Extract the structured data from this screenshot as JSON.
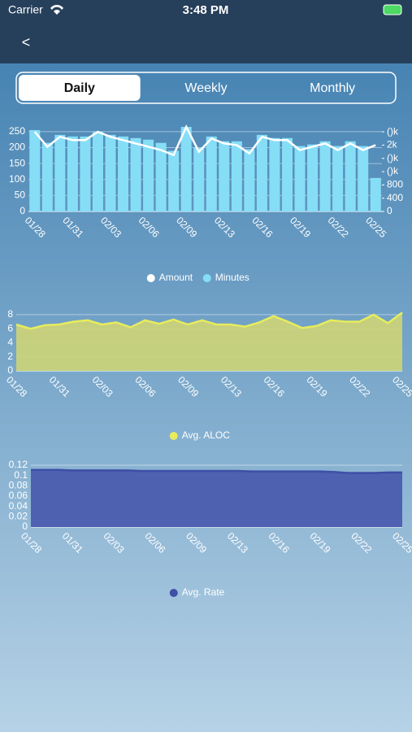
{
  "status_bar": {
    "carrier": "Carrier",
    "time": "3:48 PM"
  },
  "nav": {
    "back": "<"
  },
  "tabs": {
    "items": [
      "Daily",
      "Weekly",
      "Monthly"
    ],
    "selected": 0
  },
  "chart_data": [
    {
      "type": "bar",
      "categories": [
        "01/28",
        null,
        null,
        "01/31",
        null,
        null,
        "02/03",
        null,
        null,
        "02/06",
        null,
        null,
        "02/09",
        null,
        null,
        "02/13",
        null,
        null,
        "02/16",
        null,
        null,
        "02/19",
        null,
        null,
        "02/22",
        null,
        null,
        "02/25"
      ],
      "series": [
        {
          "name": "Amount",
          "type": "line",
          "axis": "y2",
          "color": "#ffffff",
          "values": [
            2400,
            1950,
            2250,
            2150,
            2150,
            2400,
            2250,
            2150,
            2050,
            1950,
            1850,
            1700,
            2550,
            1800,
            2200,
            2050,
            2000,
            1750,
            2250,
            2150,
            2150,
            1850,
            1950,
            2050,
            1850,
            2050,
            1850,
            2000
          ]
        },
        {
          "name": "Minutes",
          "type": "bar",
          "axis": "y",
          "color": "#86def6",
          "values": [
            255,
            215,
            240,
            235,
            235,
            250,
            240,
            235,
            230,
            225,
            215,
            190,
            265,
            200,
            235,
            220,
            220,
            195,
            240,
            230,
            230,
            205,
            210,
            220,
            205,
            220,
            205,
            105
          ]
        }
      ],
      "ylim": [
        0,
        260
      ],
      "yticks": [
        0,
        50,
        100,
        150,
        200,
        250
      ],
      "y2lim": [
        0,
        2500
      ],
      "y2ticks": [
        0,
        400,
        800,
        {
          "value": 1200,
          "label": "()k"
        },
        {
          "value": 1600,
          "label": "()k"
        },
        {
          "value": 2000,
          "label": "2k"
        },
        {
          "value": 2400,
          "label": "()k"
        }
      ],
      "grid": true
    },
    {
      "type": "area",
      "categories": [
        "01/28",
        null,
        null,
        "01/31",
        null,
        null,
        "02/03",
        null,
        null,
        "02/06",
        null,
        null,
        "02/09",
        null,
        null,
        "02/13",
        null,
        null,
        "02/16",
        null,
        null,
        "02/19",
        null,
        null,
        "02/22",
        null,
        null,
        "02/25"
      ],
      "series": [
        {
          "name": "Avg. ALOC",
          "color": "#e8ec5c",
          "fill": "#c9d27a",
          "values": [
            6.6,
            6.0,
            6.5,
            6.6,
            7.0,
            7.2,
            6.6,
            6.9,
            6.2,
            7.2,
            6.7,
            7.3,
            6.6,
            7.2,
            6.6,
            6.6,
            6.3,
            6.9,
            7.8,
            7.0,
            6.1,
            6.4,
            7.2,
            7.0,
            7.0,
            8.0,
            6.8,
            8.3
          ]
        }
      ],
      "ylim": [
        0,
        8.8
      ],
      "yticks": [
        0,
        2,
        4,
        6,
        8
      ],
      "grid": true
    },
    {
      "type": "area",
      "categories": [
        "01/28",
        null,
        null,
        "01/31",
        null,
        null,
        "02/03",
        null,
        null,
        "02/06",
        null,
        null,
        "02/09",
        null,
        null,
        "02/13",
        null,
        null,
        "02/16",
        null,
        null,
        "02/19",
        null,
        null,
        "02/22",
        null,
        null,
        "02/25"
      ],
      "series": [
        {
          "name": "Avg. Rate",
          "color": "#3e4fa6",
          "fill": "#4b5cae",
          "values": [
            0.111,
            0.111,
            0.111,
            0.11,
            0.11,
            0.11,
            0.11,
            0.11,
            0.109,
            0.109,
            0.109,
            0.109,
            0.109,
            0.109,
            0.109,
            0.109,
            0.108,
            0.108,
            0.108,
            0.108,
            0.108,
            0.108,
            0.107,
            0.105,
            0.105,
            0.105,
            0.106,
            0.106
          ]
        }
      ],
      "ylim": [
        0,
        0.12
      ],
      "yticks": [
        0,
        0.02,
        0.04,
        0.06,
        0.08,
        0.1,
        0.12
      ],
      "grid": true
    }
  ]
}
